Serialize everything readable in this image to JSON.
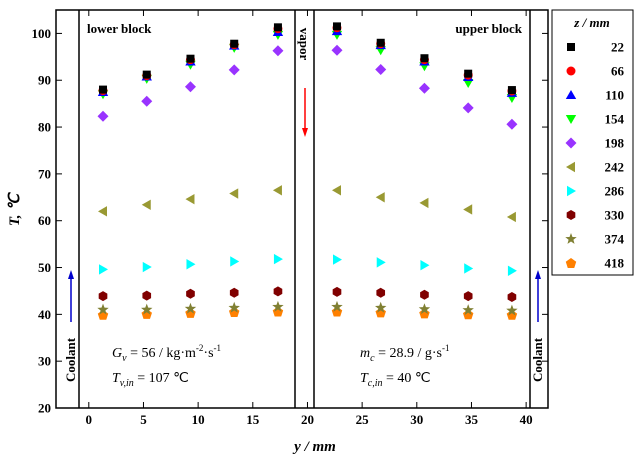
{
  "chart_data": {
    "type": "scatter",
    "xlabel": "y / mm",
    "ylabel": "T, ℃",
    "xlim": [
      -3,
      42
    ],
    "ylim": [
      20,
      105
    ],
    "x_ticks": [
      0,
      5,
      10,
      15,
      20,
      25,
      30,
      35,
      40
    ],
    "y_ticks": [
      20,
      30,
      40,
      50,
      60,
      70,
      80,
      90,
      100
    ],
    "grid": false,
    "legend_title": "z / mm",
    "legend_position": "outside-right",
    "x": [
      1.3,
      5.3,
      9.3,
      13.3,
      17.3,
      22.7,
      26.7,
      30.7,
      34.7,
      38.7
    ],
    "series": [
      {
        "name": "22",
        "marker": "square",
        "color": "#000000",
        "values": [
          88.0,
          91.2,
          94.6,
          97.8,
          101.3,
          101.5,
          98.0,
          94.7,
          91.4,
          87.9
        ]
      },
      {
        "name": "66",
        "marker": "circle",
        "color": "#ff0000",
        "values": [
          87.8,
          91.0,
          94.4,
          97.6,
          101.0,
          101.2,
          97.8,
          94.4,
          91.1,
          87.7
        ]
      },
      {
        "name": "110",
        "marker": "triangle-up",
        "color": "#0000ff",
        "values": [
          87.5,
          90.8,
          94.0,
          97.4,
          100.3,
          100.5,
          97.5,
          94.0,
          90.7,
          87.3
        ]
      },
      {
        "name": "154",
        "marker": "triangle-down",
        "color": "#00ff00",
        "values": [
          87.0,
          90.3,
          93.3,
          96.9,
          99.7,
          99.7,
          96.4,
          93.0,
          89.4,
          86.2
        ]
      },
      {
        "name": "198",
        "marker": "diamond",
        "color": "#9933ff",
        "values": [
          82.3,
          85.5,
          88.6,
          92.2,
          96.3,
          96.4,
          92.3,
          88.3,
          84.1,
          80.6
        ]
      },
      {
        "name": "242",
        "marker": "triangle-left",
        "color": "#999933",
        "values": [
          62.0,
          63.4,
          64.6,
          65.8,
          66.5,
          66.5,
          65.0,
          63.8,
          62.4,
          60.8
        ]
      },
      {
        "name": "286",
        "marker": "triangle-right",
        "color": "#00ffff",
        "values": [
          49.6,
          50.1,
          50.7,
          51.3,
          51.8,
          51.7,
          51.1,
          50.5,
          49.8,
          49.3
        ]
      },
      {
        "name": "330",
        "marker": "hexagon",
        "color": "#800000",
        "values": [
          43.9,
          44.0,
          44.4,
          44.6,
          44.9,
          44.8,
          44.6,
          44.2,
          43.9,
          43.7
        ]
      },
      {
        "name": "374",
        "marker": "star",
        "color": "#808033",
        "values": [
          41.0,
          41.0,
          41.2,
          41.4,
          41.6,
          41.6,
          41.4,
          41.1,
          40.9,
          40.8
        ]
      },
      {
        "name": "418",
        "marker": "pentagon",
        "color": "#ff8000",
        "values": [
          39.9,
          40.1,
          40.3,
          40.5,
          40.6,
          40.6,
          40.4,
          40.2,
          40.0,
          39.9
        ]
      }
    ],
    "annotations": {
      "lower_block": "lower block",
      "upper_block": "upper block",
      "vapor": "vapor",
      "coolant_left": "Coolant",
      "coolant_right": "Coolant",
      "gv_label": "G",
      "gv_sub": "v",
      "gv_value": " = 56 / kg·m",
      "gv_exp1": "-2",
      "gv_mid": "·s",
      "gv_exp2": "-1",
      "tvin_label": "T",
      "tvin_sub": "v,in",
      "tvin_value": " = 107 ℃",
      "mc_label": "m",
      "mc_sub": "c",
      "mc_value": " = 28.9 / g·s",
      "mc_exp": "-1",
      "tcin_label": "T",
      "tcin_sub": "c,in",
      "tcin_value": " = 40 ℃"
    },
    "colors": {
      "vapor_arrow": "#ff0000",
      "coolant_arrow": "#0000cc"
    }
  }
}
